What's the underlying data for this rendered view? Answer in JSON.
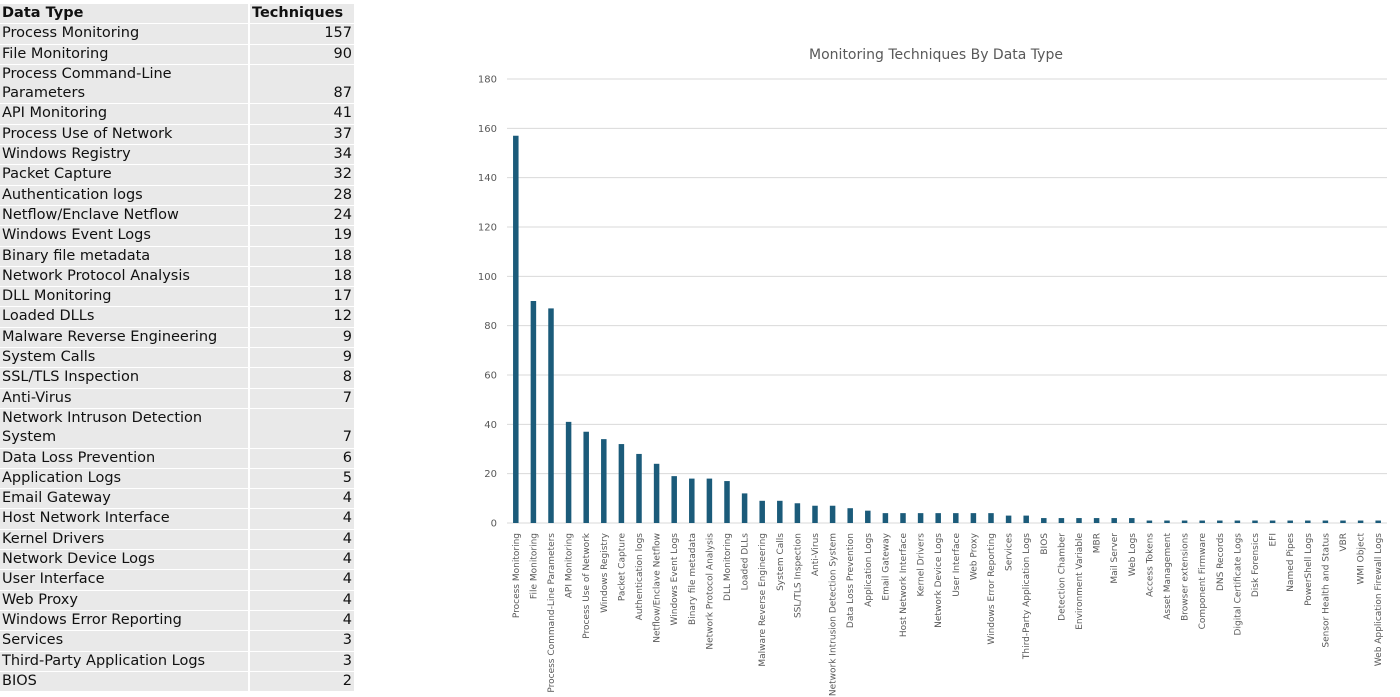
{
  "table": {
    "headers": [
      "Data Type",
      "Techniques"
    ],
    "rows": [
      [
        "Process Monitoring",
        157
      ],
      [
        "File Monitoring",
        90
      ],
      [
        "Process Command-Line Parameters",
        87
      ],
      [
        "API Monitoring",
        41
      ],
      [
        "Process Use of Network",
        37
      ],
      [
        "Windows Registry",
        34
      ],
      [
        "Packet Capture",
        32
      ],
      [
        "Authentication logs",
        28
      ],
      [
        "Netflow/Enclave Netflow",
        24
      ],
      [
        "Windows Event Logs",
        19
      ],
      [
        "Binary file metadata",
        18
      ],
      [
        "Network Protocol Analysis",
        18
      ],
      [
        "DLL Monitoring",
        17
      ],
      [
        "Loaded DLLs",
        12
      ],
      [
        "Malware Reverse Engineering",
        9
      ],
      [
        "System Calls",
        9
      ],
      [
        "SSL/TLS Inspection",
        8
      ],
      [
        "Anti-Virus",
        7
      ],
      [
        "Network Intruson Detection System",
        7
      ],
      [
        "Data Loss Prevention",
        6
      ],
      [
        "Application Logs",
        5
      ],
      [
        "Email Gateway",
        4
      ],
      [
        "Host Network Interface",
        4
      ],
      [
        "Kernel Drivers",
        4
      ],
      [
        "Network Device Logs",
        4
      ],
      [
        "User Interface",
        4
      ],
      [
        "Web Proxy",
        4
      ],
      [
        "Windows Error Reporting",
        4
      ],
      [
        "Services",
        3
      ],
      [
        "Third-Party Application Logs",
        3
      ],
      [
        "BIOS",
        2
      ]
    ]
  },
  "chart_data": {
    "type": "bar",
    "title": "Monitoring Techniques By Data Type",
    "xlabel": "",
    "ylabel": "",
    "ylim": [
      0,
      180
    ],
    "yticks": [
      0,
      20,
      40,
      60,
      80,
      100,
      120,
      140,
      160,
      180
    ],
    "grid": true,
    "color": "#1b5b7a",
    "categories": [
      "Process Monitoring",
      "File Monitoring",
      "Process Command-Line Parameters",
      "API Monitoring",
      "Process Use of Network",
      "Windows Registry",
      "Packet Capture",
      "Authentication logs",
      "Netflow/Enclave Netflow",
      "Windows Event Logs",
      "Binary file metadata",
      "Network Protocol Analysis",
      "DLL Monitoring",
      "Loaded DLLs",
      "Malware Reverse Engineering",
      "System Calls",
      "SSL/TLS Inspection",
      "Anti-Virus",
      "Network Intrusion Detection System",
      "Data Loss Prevention",
      "Application Logs",
      "Email Gateway",
      "Host Network Interface",
      "Kernel Drivers",
      "Network Device Logs",
      "User Interface",
      "Web Proxy",
      "Windows Error Reporting",
      "Services",
      "Third-Party Application Logs",
      "BIOS",
      "Detection Chamber",
      "Environment Variable",
      "MBR",
      "Mail Server",
      "Web Logs",
      "Access Tokens",
      "Asset Management",
      "Browser extensions",
      "Component Firmware",
      "DNS Records",
      "Digital Certificate Logs",
      "Disk Forensics",
      "EFI",
      "Named Pipes",
      "PowerShell Logs",
      "Sensor Health and Status",
      "VBR",
      "WMI Object",
      "Web Application Firewall Logs"
    ],
    "values": [
      157,
      90,
      87,
      41,
      37,
      34,
      32,
      28,
      24,
      19,
      18,
      18,
      17,
      12,
      9,
      9,
      8,
      7,
      7,
      6,
      5,
      4,
      4,
      4,
      4,
      4,
      4,
      4,
      3,
      3,
      2,
      2,
      2,
      2,
      2,
      2,
      1,
      1,
      1,
      1,
      1,
      1,
      1,
      1,
      1,
      1,
      1,
      1,
      1,
      1
    ]
  }
}
